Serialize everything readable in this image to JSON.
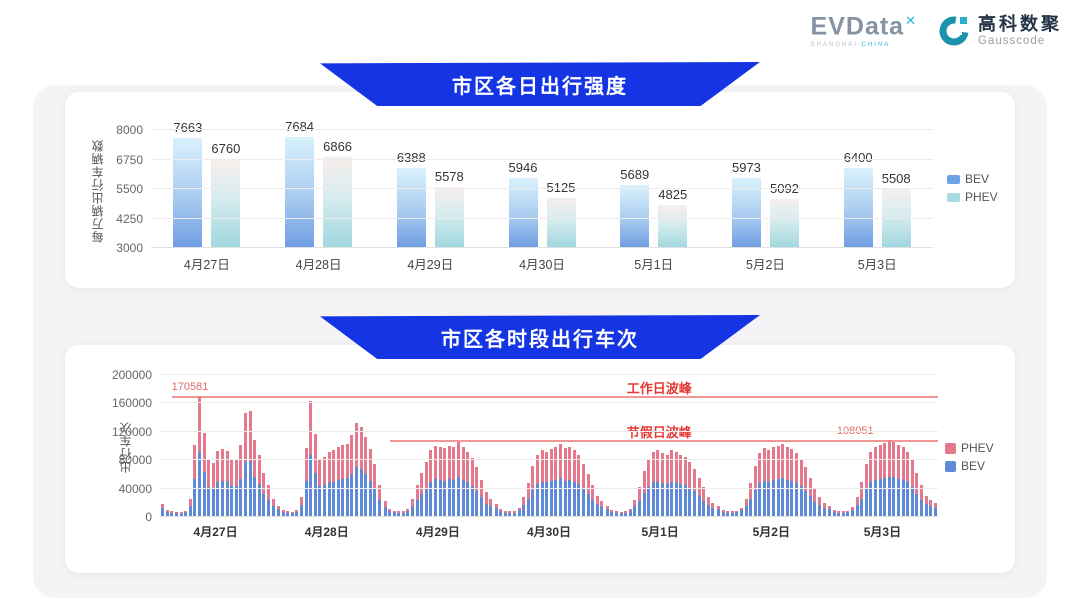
{
  "header": {
    "evdata_logo": {
      "text": "EVData",
      "sup": "✕",
      "subtext_left": "SHANGHAI",
      "subtext_right": "CHINA"
    },
    "gausscode_logo": {
      "cn": "高科数聚",
      "en": "Gausscode"
    }
  },
  "colors": {
    "banner_blue": "#1535e5",
    "bev_blue": "#5f8ad8",
    "phev_pink": "#e4798e",
    "annotation_red": "#e53935",
    "annotation_line": "#f08585",
    "card_bg": "#ffffff",
    "container_bg": "#f4f4f6"
  },
  "chart_data": [
    {
      "type": "bar",
      "title": "市区各日出行强度",
      "ylabel": "每万辆出行车辆数",
      "xlabel": "",
      "ylim": [
        3000,
        8000
      ],
      "yticks": [
        3000,
        4250,
        5500,
        6750,
        8000
      ],
      "grid": true,
      "legend_position": "right",
      "categories": [
        "4月27日",
        "4月28日",
        "4月29日",
        "4月30日",
        "5月1日",
        "5月2日",
        "5月3日"
      ],
      "series": [
        {
          "name": "BEV",
          "legend_color": "#6fa3e8",
          "values": [
            7663,
            7684,
            6388,
            5946,
            5689,
            5973,
            6400
          ]
        },
        {
          "name": "PHEV",
          "legend_color": "#a5dbe3",
          "values": [
            6760,
            6866,
            5578,
            5125,
            4825,
            5092,
            5508
          ]
        }
      ]
    },
    {
      "type": "bar",
      "stacked": true,
      "title": "市区各时段出行车次",
      "ylabel": "出行车次",
      "xlabel": "",
      "ylim": [
        0,
        200000
      ],
      "yticks": [
        0,
        40000,
        80000,
        120000,
        160000,
        200000
      ],
      "grid": true,
      "legend_position": "right",
      "bars_per_day": 24,
      "categories": [
        "4月27日",
        "4月28日",
        "4月29日",
        "4月30日",
        "5月1日",
        "5月2日",
        "5月3日"
      ],
      "series": [
        {
          "name": "BEV",
          "color": "#5f8ad8",
          "by_day": [
            [
              13000,
              7500,
              5800,
              5400,
              4700,
              6500,
              16000,
              54000,
              91000,
              63000,
              42000,
              40000,
              49000,
              51000,
              49000,
              43000,
              43000,
              54000,
              77000,
              79000,
              57000,
              47000,
              33000,
              24000
            ],
            [
              15500,
              10800,
              7200,
              5800,
              5400,
              7200,
              17000,
              51000,
              87000,
              62000,
              43000,
              45000,
              49000,
              50000,
              52000,
              54000,
              55000,
              61000,
              70000,
              67000,
              60000,
              51000,
              40000,
              24000
            ],
            [
              14000,
              8600,
              6500,
              5800,
              5800,
              8600,
              15500,
              24000,
              33000,
              41000,
              50000,
              53000,
              52000,
              51000,
              53000,
              52000,
              56000,
              52000,
              49000,
              44000,
              37000,
              28000,
              19000,
              15500
            ],
            [
              13000,
              7900,
              6100,
              5800,
              6100,
              9400,
              17000,
              25000,
              38000,
              47000,
              50000,
              49000,
              51000,
              52000,
              55000,
              51000,
              52000,
              50000,
              47000,
              40000,
              32000,
              24000,
              18500,
              14000
            ],
            [
              11500,
              7200,
              5800,
              5400,
              5800,
              8600,
              15000,
              22000,
              34000,
              42000,
              49000,
              50000,
              48000,
              46000,
              50000,
              49000,
              47000,
              45000,
              41000,
              36000,
              29000,
              22000,
              17000,
              12500
            ],
            [
              11000,
              7200,
              5800,
              5800,
              6500,
              9400,
              16000,
              25000,
              38000,
              48000,
              51000,
              50000,
              52000,
              53000,
              55000,
              52000,
              51000,
              48000,
              43000,
              37000,
              29000,
              21000,
              17000,
              12500
            ],
            [
              11000,
              7200,
              6100,
              5800,
              6500,
              10000,
              17000,
              26000,
              40000,
              49000,
              52000,
              54000,
              55000,
              57000,
              56000,
              53000,
              52000,
              49000,
              42000,
              33000,
              24000,
              18500,
              15000,
              12500
            ]
          ]
        },
        {
          "name": "PHEV",
          "color": "#e4798e",
          "by_day": [
            [
              5000,
              3000,
              2200,
              2100,
              1800,
              2500,
              10000,
              47000,
              79581,
              56000,
              38000,
              36000,
              44000,
              45000,
              44000,
              39000,
              38500,
              48000,
              69000,
              70500,
              51500,
              41000,
              29000,
              21000
            ],
            [
              9500,
              4200,
              2800,
              2200,
              2100,
              2800,
              11000,
              46000,
              77000,
              55000,
              39000,
              40000,
              43000,
              45000,
              46000,
              47000,
              48000,
              54000,
              63000,
              60000,
              53000,
              45000,
              35000,
              21000
            ],
            [
              8000,
              3400,
              2500,
              2200,
              2200,
              3400,
              9500,
              21000,
              29000,
              37000,
              45000,
              47000,
              46000,
              46000,
              47000,
              46000,
              49000,
              47000,
              43000,
              39000,
              33000,
              24000,
              16000,
              9500
            ],
            [
              5000,
              3100,
              2400,
              2200,
              2400,
              3600,
              11000,
              23000,
              34000,
              41000,
              45000,
              43000,
              45000,
              46000,
              48000,
              46000,
              47000,
              44000,
              41000,
              35000,
              28000,
              21000,
              11500,
              8000
            ],
            [
              4500,
              2800,
              2200,
              2100,
              2200,
              3400,
              9000,
              20000,
              31000,
              38000,
              43000,
              45000,
              42000,
              41000,
              44000,
              43000,
              41000,
              40000,
              37000,
              32000,
              26000,
              20000,
              11000,
              7500
            ],
            [
              4000,
              2800,
              2200,
              2200,
              2500,
              3600,
              10000,
              23000,
              34000,
              42000,
              46000,
              45000,
              46000,
              47000,
              48000,
              46000,
              45000,
              42000,
              39000,
              33000,
              26000,
              19000,
              11000,
              7500
            ],
            [
              4000,
              2800,
              2400,
              2200,
              2500,
              4000,
              11000,
              24000,
              35000,
              43000,
              47000,
              48000,
              49000,
              51051,
              49000,
              48000,
              46000,
              43000,
              38000,
              29000,
              21000,
              11500,
              9000,
              7500
            ]
          ]
        }
      ],
      "annotations": [
        {
          "name": "workday_peak",
          "label": "工作日波峰",
          "value": 170581,
          "value_label": "170581",
          "line_start_pct": 1.5,
          "label_left_pct": 60,
          "value_left_pct": 1.5
        },
        {
          "name": "holiday_peak",
          "label": "节假日波峰",
          "value": 108051,
          "value_label": "108051",
          "line_start_pct": 29.5,
          "label_left_pct": 60,
          "value_left_pct": 87
        }
      ],
      "legend_order": [
        "PHEV",
        "BEV"
      ]
    }
  ]
}
